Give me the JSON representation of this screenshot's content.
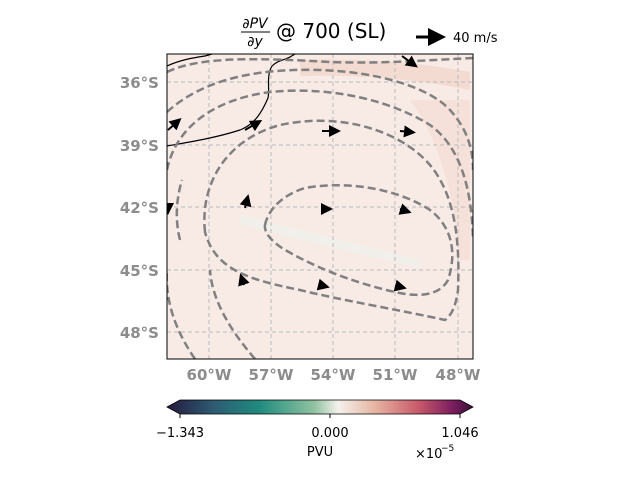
{
  "title": {
    "frac_top": "∂PV",
    "frac_bottom": "∂y",
    "suffix": "@ 700 (SL)"
  },
  "quiver_key": {
    "label": "40 m/s"
  },
  "map": {
    "lat_labels": [
      "36°S",
      "39°S",
      "42°S",
      "45°S",
      "48°S"
    ],
    "lon_labels": [
      "60°W",
      "57°W",
      "54°W",
      "51°W",
      "48°W"
    ],
    "gridlines": true
  },
  "colorbar": {
    "min_label": "−1.343",
    "mid_label": "0.000",
    "max_label": "1.046",
    "units": "PVU",
    "scale_base": "×10",
    "scale_exp": "−5",
    "colors": [
      "#241a3c",
      "#2e5a72",
      "#1f8b7e",
      "#8fc2a0",
      "#f4f1ec",
      "#e6b4a0",
      "#c95a6c",
      "#7e1f5f",
      "#3c0f3c"
    ]
  }
}
